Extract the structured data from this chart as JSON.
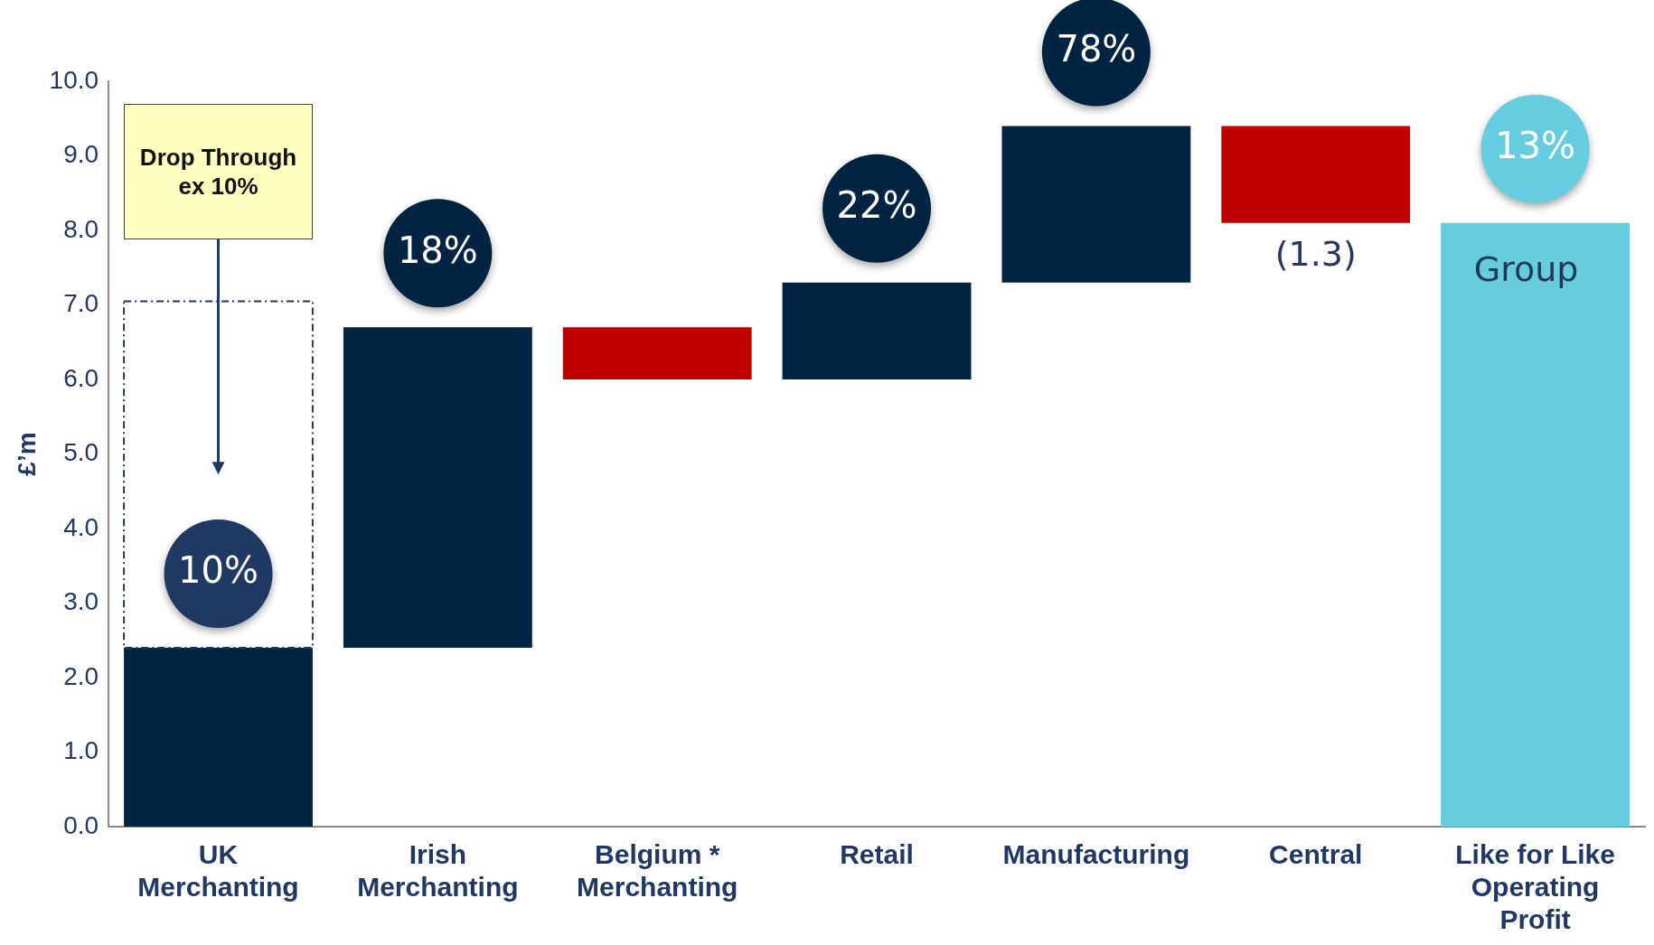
{
  "chart_data": {
    "type": "bar",
    "ylabel": "£’m",
    "categories": [
      "UK Merchanting",
      "Irish Merchanting",
      "Belgium * Merchanting",
      "Retail",
      "Manufacturing",
      "Central",
      "Like for Like Operating Profit"
    ],
    "series": [
      {
        "colors": [
          "#002442",
          "#002442",
          "#c00000",
          "#002442",
          "#002442",
          "#c00000",
          null
        ],
        "base": [
          0,
          2.4,
          6.7,
          6.0,
          7.3,
          9.4,
          null
        ],
        "values": [
          2.4,
          4.3,
          -0.7,
          1.3,
          2.1,
          -1.3,
          null
        ],
        "value_labels": [
          null,
          null,
          null,
          null,
          null,
          "(1.3)",
          null
        ]
      },
      {
        "color": "#1f3864",
        "line_style": "dashed",
        "base": [
          2.4,
          null,
          null,
          null,
          null,
          null,
          null
        ],
        "values": [
          4.65,
          null,
          null,
          null,
          null,
          null,
          null
        ]
      },
      {
        "name": "Group",
        "color": "#66cce0",
        "base": [
          null,
          null,
          null,
          null,
          null,
          null,
          0
        ],
        "values": [
          null,
          null,
          null,
          null,
          null,
          null,
          8.1
        ]
      }
    ],
    "ylim": [
      0,
      10
    ],
    "yticks": [
      {
        "value": 0,
        "label": "0.0"
      },
      {
        "value": 1,
        "label": "1.0"
      },
      {
        "value": 2,
        "label": "2.0"
      },
      {
        "value": 3,
        "label": "3.0"
      },
      {
        "value": 4,
        "label": "4.0"
      },
      {
        "value": 5,
        "label": "5.0"
      },
      {
        "value": 6,
        "label": "6.0"
      },
      {
        "value": 7,
        "label": "7.0"
      },
      {
        "value": 8,
        "label": "8.0"
      },
      {
        "value": 9,
        "label": "9.0"
      },
      {
        "value": 10,
        "label": "10.0"
      }
    ],
    "grid": false,
    "legend": false,
    "annotations": [
      "Drop Through ex 10%",
      {
        "text": "10%",
        "x": "UK Merchanting",
        "y": 2.4
      },
      {
        "text": "18%",
        "x": "Irish Merchanting",
        "y": 6.7
      },
      {
        "text": "22%",
        "x": "Retail",
        "y": 7.3
      },
      {
        "text": "78%",
        "x": "Manufacturing",
        "y": 9.4
      },
      {
        "text": "13%",
        "x": "Like for Like Operating Profit",
        "y": 8.1
      }
    ]
  }
}
